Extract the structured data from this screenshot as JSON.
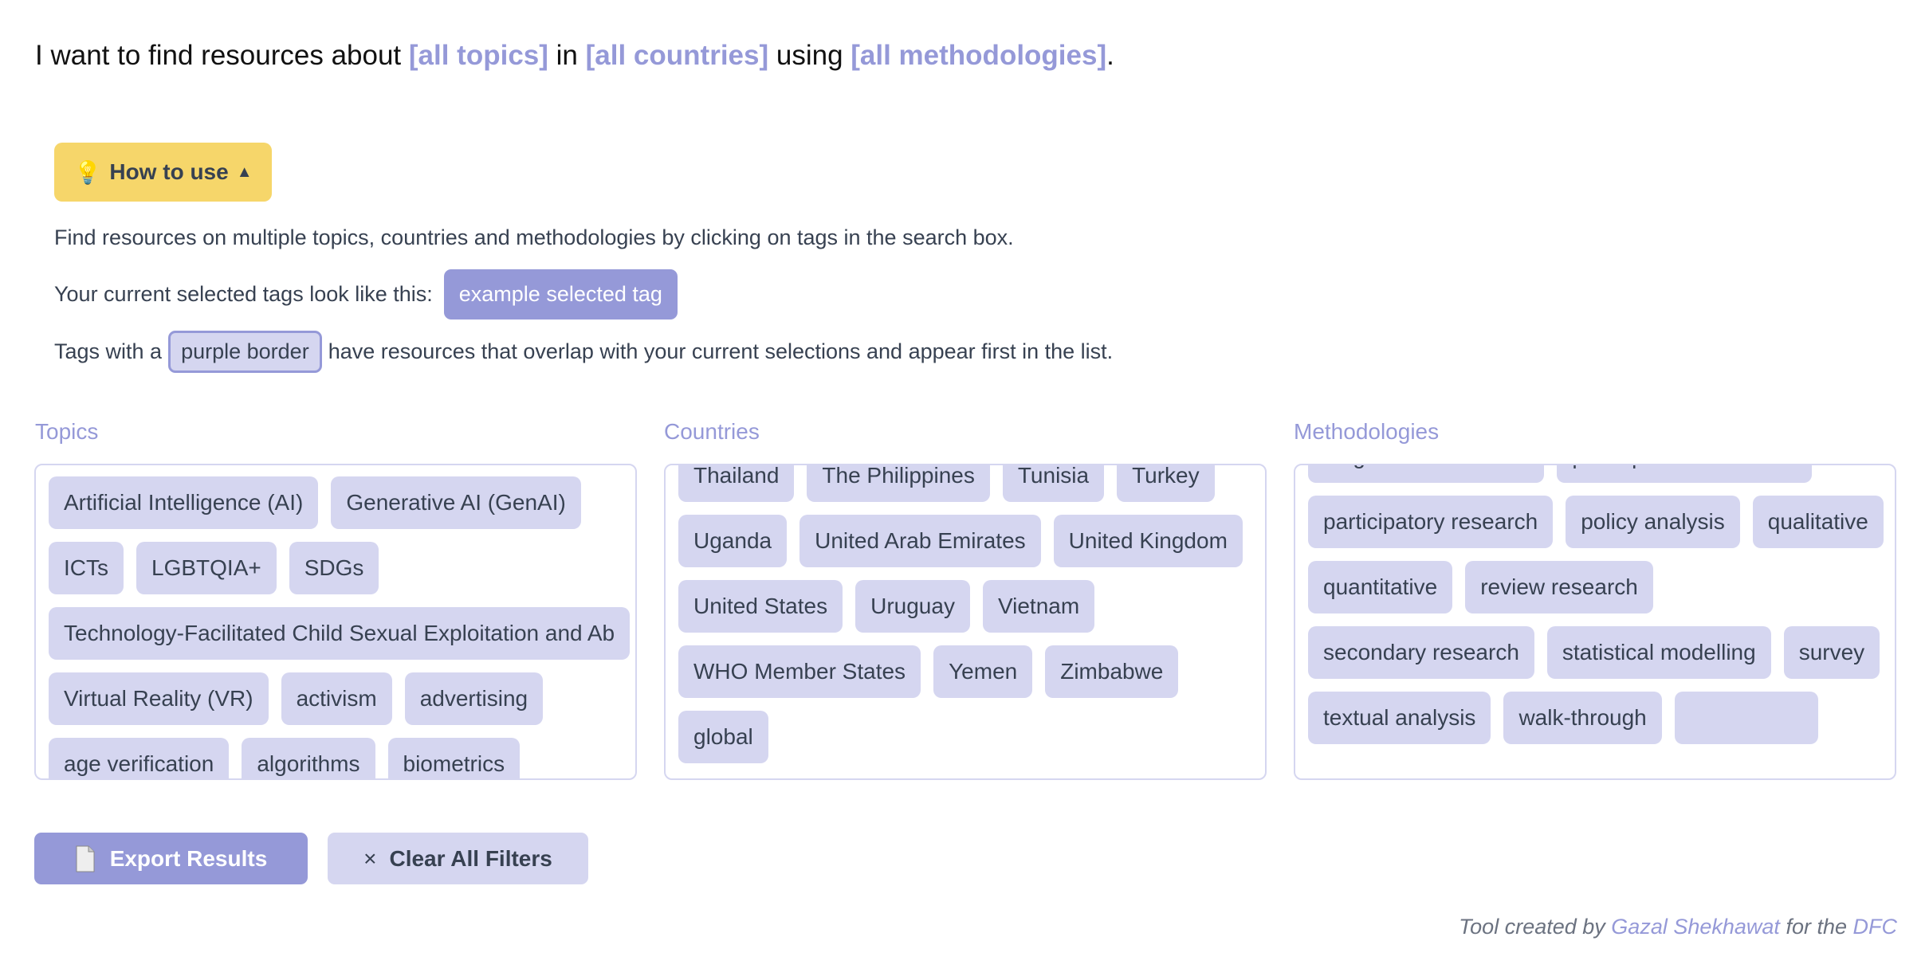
{
  "title": {
    "prefix": "I want to find resources about",
    "topics": "[all topics]",
    "in": "in",
    "countries": "[all countries]",
    "using": "using",
    "methodologies": "[all methodologies]",
    "end": "."
  },
  "howto": {
    "icon": "lightbulb-icon",
    "glyph": "💡",
    "label": "How to use",
    "arrow": "▲"
  },
  "help": {
    "line1": "Find resources on multiple topics, countries and methodologies by clicking on tags in the search box.",
    "line2": "Your current selected tags look like this:",
    "selected_example": "example selected tag",
    "line3_pre": "Tags with a",
    "border_example": "purple border",
    "line3_post": "have resources that overlap with your current selections and appear first in the list."
  },
  "sections": {
    "topics": {
      "label": "Topics",
      "tags": [
        "Artificial Intelligence (AI)",
        "Generative AI (GenAI)",
        "ICTs",
        "LGBTQIA+",
        "SDGs",
        "Technology-Facilitated Child Sexual Exploitation and Ab",
        "Virtual Reality (VR)",
        "activism",
        "advertising",
        "age verification",
        "algorithms",
        "biometrics"
      ]
    },
    "countries": {
      "label": "Countries",
      "tags": [
        "Thailand",
        "The Philippines",
        "Tunisia",
        "Turkey",
        "Uganda",
        "United Arab Emirates",
        "United Kingdom",
        "United States",
        "Uruguay",
        "Vietnam",
        "WHO Member States",
        "Yemen",
        "Zimbabwe",
        "global"
      ]
    },
    "methodologies": {
      "label": "Methodologies",
      "tags": [
        "longitudinal research",
        "participant observation",
        "participatory research",
        "policy analysis",
        "qualitative",
        "quantitative",
        "review research",
        "secondary research",
        "statistical modelling",
        "survey",
        "textual analysis",
        "walk-through",
        ""
      ]
    }
  },
  "buttons": {
    "export": "Export Results",
    "export_icon": "document-icon",
    "clear": "Clear All Filters",
    "clear_glyph": "×"
  },
  "footer": {
    "pre": "Tool created by",
    "author": "Gazal Shekhawat",
    "mid": "for the",
    "org": "DFC"
  },
  "colors": {
    "accent": "#9599d8",
    "tag_bg": "#d5d6f0",
    "howto_bg": "#f6d66a"
  }
}
